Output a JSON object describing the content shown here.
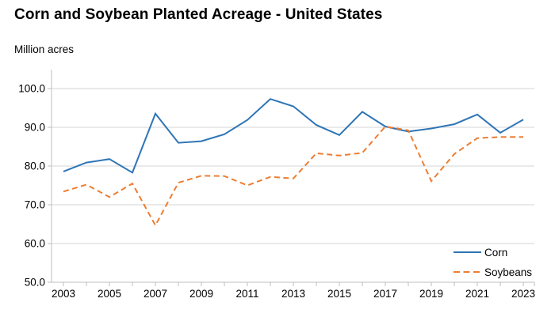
{
  "chart_data": {
    "type": "line",
    "title": "Corn and Soybean Planted Acreage - United States",
    "ylabel": "Million acres",
    "xlabel": "",
    "x": [
      2003,
      2004,
      2005,
      2006,
      2007,
      2008,
      2009,
      2010,
      2011,
      2012,
      2013,
      2014,
      2015,
      2016,
      2017,
      2018,
      2019,
      2020,
      2021,
      2022,
      2023
    ],
    "xtick_labels": [
      "2003",
      "2005",
      "2007",
      "2009",
      "2011",
      "2013",
      "2015",
      "2017",
      "2019",
      "2021",
      "2023"
    ],
    "ylim": [
      50,
      100
    ],
    "yticks": [
      50,
      60,
      70,
      80,
      90,
      100
    ],
    "ytick_labels": [
      "50.0",
      "60.0",
      "70.0",
      "80.0",
      "90.0",
      "100.0"
    ],
    "grid": "horizontal",
    "legend_position": "inside-bottom-right",
    "series": [
      {
        "name": "Corn",
        "line_style": "solid",
        "color": "#2e75b6",
        "values": [
          78.6,
          80.9,
          81.8,
          78.3,
          93.5,
          86.0,
          86.4,
          88.2,
          91.9,
          97.3,
          95.4,
          90.6,
          88.0,
          94.0,
          90.2,
          88.9,
          89.7,
          90.8,
          93.3,
          88.6,
          92.0
        ]
      },
      {
        "name": "Soybeans",
        "line_style": "dashed",
        "color": "#ed7d31",
        "values": [
          73.4,
          75.2,
          72.0,
          75.5,
          64.7,
          75.7,
          77.5,
          77.4,
          75.0,
          77.2,
          76.8,
          83.3,
          82.7,
          83.4,
          90.2,
          89.2,
          76.1,
          83.1,
          87.2,
          87.5,
          87.5
        ]
      }
    ],
    "colors": {
      "background": "#ffffff",
      "grid": "#d6d6d6",
      "axis": "#bfbfbf",
      "text": "#000000"
    }
  }
}
